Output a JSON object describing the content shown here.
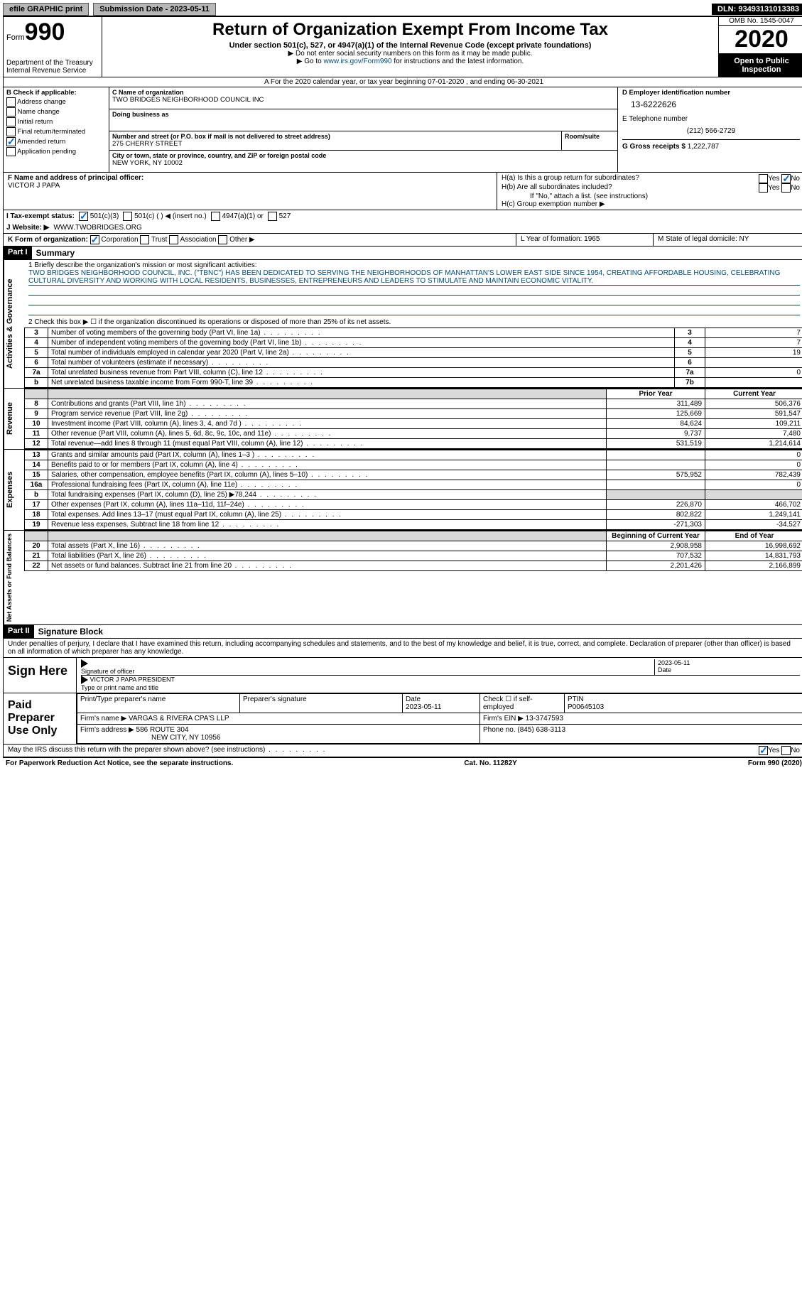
{
  "top_bar": {
    "efile": "efile GRAPHIC print",
    "submission": "Submission Date - 2023-05-11",
    "dln": "DLN: 93493131013383"
  },
  "header": {
    "form_word": "Form",
    "form_num": "990",
    "dept": "Department of the Treasury\nInternal Revenue Service",
    "title": "Return of Organization Exempt From Income Tax",
    "subtitle": "Under section 501(c), 527, or 4947(a)(1) of the Internal Revenue Code (except private foundations)",
    "note1": "▶ Do not enter social security numbers on this form as it may be made public.",
    "note2_pre": "▶ Go to ",
    "note2_link": "www.irs.gov/Form990",
    "note2_post": " for instructions and the latest information.",
    "omb": "OMB No. 1545-0047",
    "year": "2020",
    "open": "Open to Public Inspection"
  },
  "row_a": "A For the 2020 calendar year, or tax year beginning 07-01-2020    , and ending 06-30-2021",
  "section_b": {
    "label": "B Check if applicable:",
    "items": [
      "Address change",
      "Name change",
      "Initial return",
      "Final return/terminated",
      "Amended return",
      "Application pending"
    ],
    "checked_index": 4
  },
  "section_c": {
    "name_label": "C Name of organization",
    "name": "TWO BRIDGES NEIGHBORHOOD COUNCIL INC",
    "dba_label": "Doing business as",
    "dba": "",
    "street_label": "Number and street (or P.O. box if mail is not delivered to street address)",
    "street": "275 CHERRY STREET",
    "room_label": "Room/suite",
    "city_label": "City or town, state or province, country, and ZIP or foreign postal code",
    "city": "NEW YORK, NY  10002"
  },
  "section_de": {
    "d_label": "D Employer identification number",
    "ein": "13-6222626",
    "e_label": "E Telephone number",
    "phone": "(212) 566-2729",
    "g_label": "G Gross receipts $",
    "gross": "1,222,787"
  },
  "section_f": {
    "label": "F  Name and address of principal officer:",
    "name": "VICTOR J PAPA"
  },
  "section_h": {
    "ha": "H(a)  Is this a group return for subordinates?",
    "hb": "H(b)  Are all subordinates included?",
    "hb_note": "If \"No,\" attach a list. (see instructions)",
    "hc": "H(c)  Group exemption number ▶",
    "yes": "Yes",
    "no": "No"
  },
  "section_i": {
    "label": "I    Tax-exempt status:",
    "opts": [
      "501(c)(3)",
      "501(c) (    ) ◀ (insert no.)",
      "4947(a)(1) or",
      "527"
    ]
  },
  "section_j": {
    "label": "J   Website: ▶",
    "value": "WWW.TWOBRIDGES.ORG"
  },
  "section_k": {
    "label": "K Form of organization:",
    "opts": [
      "Corporation",
      "Trust",
      "Association",
      "Other ▶"
    ]
  },
  "section_l": {
    "l": "L Year of formation: 1965",
    "m": "M State of legal domicile: NY"
  },
  "part1": {
    "header": "Part I",
    "title": "Summary",
    "line1_label": "1  Briefly describe the organization's mission or most significant activities:",
    "mission": "TWO BRIDGES NEIGHBORHOOD COUNCIL, INC. (\"TBNC\") HAS BEEN DEDICATED TO SERVING THE NEIGHBORHOODS OF MANHATTAN'S LOWER EAST SIDE SINCE 1954, CREATING AFFORDABLE HOUSING, CELEBRATING CULTURAL DIVERSITY AND WORKING WITH LOCAL RESIDENTS, BUSINESSES, ENTREPRENEURS AND LEADERS TO STIMULATE AND MAINTAIN ECONOMIC VITALITY.",
    "line2": "2   Check this box ▶ ☐  if the organization discontinued its operations or disposed of more than 25% of its net assets.",
    "gov_rows": [
      {
        "n": "3",
        "desc": "Number of voting members of the governing body (Part VI, line 1a)",
        "box": "3",
        "val": "7"
      },
      {
        "n": "4",
        "desc": "Number of independent voting members of the governing body (Part VI, line 1b)",
        "box": "4",
        "val": "7"
      },
      {
        "n": "5",
        "desc": "Total number of individuals employed in calendar year 2020 (Part V, line 2a)",
        "box": "5",
        "val": "19"
      },
      {
        "n": "6",
        "desc": "Total number of volunteers (estimate if necessary)",
        "box": "6",
        "val": ""
      },
      {
        "n": "7a",
        "desc": "Total unrelated business revenue from Part VIII, column (C), line 12",
        "box": "7a",
        "val": "0"
      },
      {
        "n": "b",
        "desc": "Net unrelated business taxable income from Form 990-T, line 39",
        "box": "7b",
        "val": ""
      }
    ],
    "py_header": "Prior Year",
    "cy_header": "Current Year",
    "rev_rows": [
      {
        "n": "8",
        "desc": "Contributions and grants (Part VIII, line 1h)",
        "py": "311,489",
        "cy": "506,376"
      },
      {
        "n": "9",
        "desc": "Program service revenue (Part VIII, line 2g)",
        "py": "125,669",
        "cy": "591,547"
      },
      {
        "n": "10",
        "desc": "Investment income (Part VIII, column (A), lines 3, 4, and 7d )",
        "py": "84,624",
        "cy": "109,211"
      },
      {
        "n": "11",
        "desc": "Other revenue (Part VIII, column (A), lines 5, 6d, 8c, 9c, 10c, and 11e)",
        "py": "9,737",
        "cy": "7,480"
      },
      {
        "n": "12",
        "desc": "Total revenue—add lines 8 through 11 (must equal Part VIII, column (A), line 12)",
        "py": "531,519",
        "cy": "1,214,614"
      }
    ],
    "exp_rows": [
      {
        "n": "13",
        "desc": "Grants and similar amounts paid (Part IX, column (A), lines 1–3 )",
        "py": "",
        "cy": "0"
      },
      {
        "n": "14",
        "desc": "Benefits paid to or for members (Part IX, column (A), line 4)",
        "py": "",
        "cy": "0"
      },
      {
        "n": "15",
        "desc": "Salaries, other compensation, employee benefits (Part IX, column (A), lines 5–10)",
        "py": "575,952",
        "cy": "782,439"
      },
      {
        "n": "16a",
        "desc": "Professional fundraising fees (Part IX, column (A), line 11e)",
        "py": "",
        "cy": "0"
      },
      {
        "n": "b",
        "desc": "Total fundraising expenses (Part IX, column (D), line 25) ▶78,244",
        "py": "shade",
        "cy": "shade"
      },
      {
        "n": "17",
        "desc": "Other expenses (Part IX, column (A), lines 11a–11d, 11f–24e)",
        "py": "226,870",
        "cy": "466,702"
      },
      {
        "n": "18",
        "desc": "Total expenses. Add lines 13–17 (must equal Part IX, column (A), line 25)",
        "py": "802,822",
        "cy": "1,249,141"
      },
      {
        "n": "19",
        "desc": "Revenue less expenses. Subtract line 18 from line 12",
        "py": "-271,303",
        "cy": "-34,527"
      }
    ],
    "na_head_py": "Beginning of Current Year",
    "na_head_cy": "End of Year",
    "na_rows": [
      {
        "n": "20",
        "desc": "Total assets (Part X, line 16)",
        "py": "2,908,958",
        "cy": "16,998,692"
      },
      {
        "n": "21",
        "desc": "Total liabilities (Part X, line 26)",
        "py": "707,532",
        "cy": "14,831,793"
      },
      {
        "n": "22",
        "desc": "Net assets or fund balances. Subtract line 21 from line 20",
        "py": "2,201,426",
        "cy": "2,166,899"
      }
    ],
    "vtabs": {
      "gov": "Activities & Governance",
      "rev": "Revenue",
      "exp": "Expenses",
      "na": "Net Assets or Fund Balances"
    }
  },
  "part2": {
    "header": "Part II",
    "title": "Signature Block",
    "penalties": "Under penalties of perjury, I declare that I have examined this return, including accompanying schedules and statements, and to the best of my knowledge and belief, it is true, correct, and complete. Declaration of preparer (other than officer) is based on all information of which preparer has any knowledge.",
    "sign_here": "Sign Here",
    "sig_of_officer": "Signature of officer",
    "sig_date": "2023-05-11",
    "date_label": "Date",
    "officer_name": "VICTOR J PAPA PRESIDENT",
    "type_name": "Type or print name and title",
    "paid_label": "Paid Preparer Use Only",
    "prep_name_label": "Print/Type preparer's name",
    "prep_sig_label": "Preparer's signature",
    "prep_date_label": "Date",
    "prep_date": "2023-05-11",
    "self_emp": "Check ☐ if self-employed",
    "ptin_label": "PTIN",
    "ptin": "P00645103",
    "firm_name_label": "Firm's name    ▶",
    "firm_name": "VARGAS & RIVERA CPA'S LLP",
    "firm_ein_label": "Firm's EIN ▶",
    "firm_ein": "13-3747593",
    "firm_addr_label": "Firm's address ▶",
    "firm_addr": "586 ROUTE 304",
    "firm_city": "NEW CITY, NY  10956",
    "firm_phone_label": "Phone no.",
    "firm_phone": "(845) 638-3113",
    "discuss": "May the IRS discuss this return with the preparer shown above? (see instructions)",
    "yes": "Yes",
    "no": "No"
  },
  "footer": {
    "left": "For Paperwork Reduction Act Notice, see the separate instructions.",
    "center": "Cat. No. 11282Y",
    "right": "Form 990 (2020)"
  }
}
